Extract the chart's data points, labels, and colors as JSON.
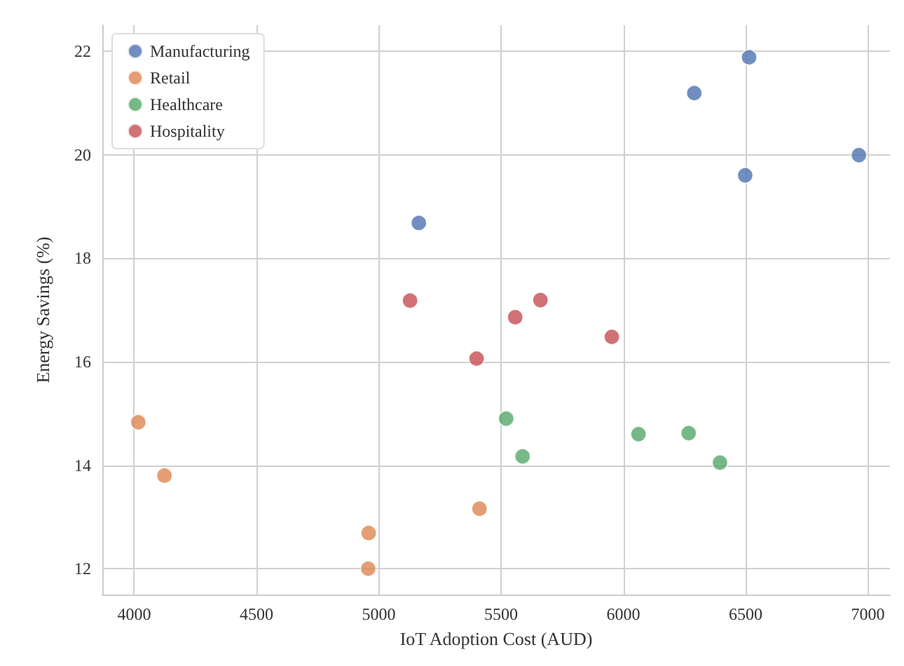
{
  "chart_data": {
    "type": "scatter",
    "xlabel": "IoT Adoption Cost (AUD)",
    "ylabel": "Energy Savings (%)",
    "series": [
      {
        "name": "Manufacturing",
        "color": "#4c72b0",
        "x": [
          6514,
          6290,
          6963,
          6498,
          5164
        ],
        "values": [
          21.88,
          21.19,
          19.99,
          19.6,
          18.68
        ]
      },
      {
        "name": "Retail",
        "color": "#dd8452",
        "x": [
          4017,
          4124,
          5412,
          4959,
          4957
        ],
        "values": [
          14.83,
          13.8,
          13.16,
          12.69,
          12.0
        ]
      },
      {
        "name": "Healthcare",
        "color": "#55a868",
        "x": [
          5521,
          6062,
          6267,
          5588,
          6395
        ],
        "values": [
          14.9,
          14.6,
          14.62,
          14.17,
          14.05
        ]
      },
      {
        "name": "Hospitality",
        "color": "#c44e52",
        "x": [
          5128,
          5661,
          5558,
          5953,
          5400
        ],
        "values": [
          17.18,
          17.19,
          16.86,
          16.48,
          16.06
        ]
      }
    ],
    "xlim": [
      3870,
      7090
    ],
    "xticks": [
      4000,
      4500,
      5000,
      5500,
      6000,
      6500,
      7000
    ],
    "ylim": [
      11.5,
      22.5
    ],
    "yticks": [
      12,
      14,
      16,
      18,
      20,
      22
    ],
    "grid": true,
    "legend": "top left",
    "marker": "circle"
  }
}
